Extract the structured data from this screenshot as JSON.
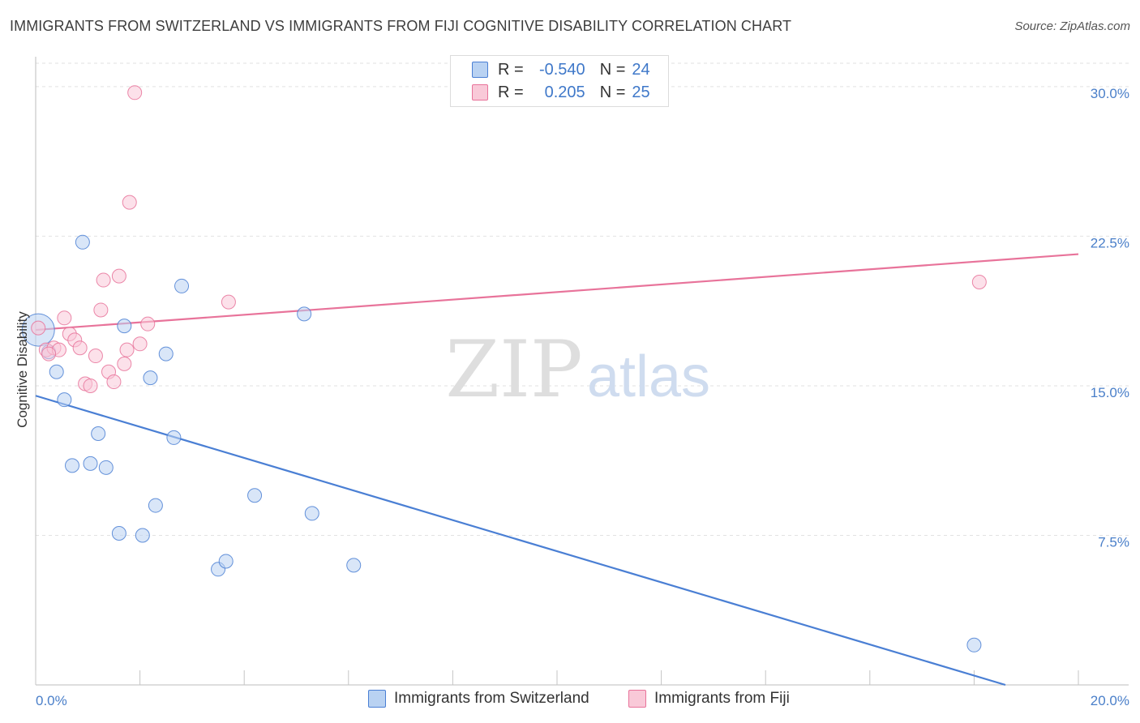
{
  "title": "IMMIGRANTS FROM SWITZERLAND VS IMMIGRANTS FROM FIJI COGNITIVE DISABILITY CORRELATION CHART",
  "source": "Source: ZipAtlas.com",
  "watermark": {
    "zip": "ZIP",
    "atlas": "atlas"
  },
  "legend": {
    "rows": [
      {
        "r_label": "R =",
        "r_value": "-0.540",
        "n_label": "N =",
        "n_value": "24"
      },
      {
        "r_label": "R =",
        "r_value": "0.205",
        "n_label": "N =",
        "n_value": "25"
      }
    ]
  },
  "chart_data": {
    "type": "scatter",
    "title": "IMMIGRANTS FROM SWITZERLAND VS IMMIGRANTS FROM FIJI COGNITIVE DISABILITY CORRELATION CHART",
    "xlabel": "",
    "ylabel": "Cognitive Disability",
    "xlim": [
      0,
      20
    ],
    "ylim": [
      0,
      31.5
    ],
    "x_tick_labels": [
      "0.0%",
      "20.0%"
    ],
    "y_ticks": [
      7.5,
      15.0,
      22.5,
      30.0
    ],
    "y_tick_labels": [
      "7.5%",
      "15.0%",
      "22.5%",
      "30.0%"
    ],
    "grid": true,
    "legend_position": "top-center",
    "series": [
      {
        "name": "Immigrants from Switzerland",
        "color": "#4a7fd4",
        "fill": "#b9d2f2",
        "r": -0.54,
        "n": 24,
        "trend": {
          "x": [
            0,
            18.6
          ],
          "y": [
            14.5,
            0
          ]
        },
        "points": [
          {
            "x": 0.05,
            "y": 17.8,
            "big": true
          },
          {
            "x": 0.25,
            "y": 16.7
          },
          {
            "x": 0.4,
            "y": 15.7
          },
          {
            "x": 0.55,
            "y": 14.3
          },
          {
            "x": 0.7,
            "y": 11.0
          },
          {
            "x": 0.9,
            "y": 22.2
          },
          {
            "x": 1.05,
            "y": 11.1
          },
          {
            "x": 1.2,
            "y": 12.6
          },
          {
            "x": 1.35,
            "y": 10.9
          },
          {
            "x": 1.6,
            "y": 7.6
          },
          {
            "x": 1.7,
            "y": 18.0
          },
          {
            "x": 2.05,
            "y": 7.5
          },
          {
            "x": 2.2,
            "y": 15.4
          },
          {
            "x": 2.3,
            "y": 9.0
          },
          {
            "x": 2.5,
            "y": 16.6
          },
          {
            "x": 2.65,
            "y": 12.4
          },
          {
            "x": 2.8,
            "y": 20.0
          },
          {
            "x": 3.5,
            "y": 5.8
          },
          {
            "x": 3.65,
            "y": 6.2
          },
          {
            "x": 4.2,
            "y": 9.5
          },
          {
            "x": 5.15,
            "y": 18.6
          },
          {
            "x": 5.3,
            "y": 8.6
          },
          {
            "x": 6.1,
            "y": 6.0
          },
          {
            "x": 18.0,
            "y": 2.0
          }
        ]
      },
      {
        "name": "Immigrants from Fiji",
        "color": "#e8739a",
        "fill": "#f9c9d8",
        "r": 0.205,
        "n": 25,
        "trend": {
          "x": [
            0,
            20
          ],
          "y": [
            17.8,
            21.6
          ]
        },
        "points": [
          {
            "x": 0.05,
            "y": 17.9
          },
          {
            "x": 0.2,
            "y": 16.8
          },
          {
            "x": 0.35,
            "y": 16.9
          },
          {
            "x": 0.45,
            "y": 16.8
          },
          {
            "x": 0.55,
            "y": 18.4
          },
          {
            "x": 0.65,
            "y": 17.6
          },
          {
            "x": 0.75,
            "y": 17.3
          },
          {
            "x": 0.85,
            "y": 16.9
          },
          {
            "x": 0.95,
            "y": 15.1
          },
          {
            "x": 1.05,
            "y": 15.0
          },
          {
            "x": 1.15,
            "y": 16.5
          },
          {
            "x": 1.25,
            "y": 18.8
          },
          {
            "x": 1.3,
            "y": 20.3
          },
          {
            "x": 1.4,
            "y": 15.7
          },
          {
            "x": 1.5,
            "y": 15.2
          },
          {
            "x": 1.6,
            "y": 20.5
          },
          {
            "x": 1.7,
            "y": 16.1
          },
          {
            "x": 1.75,
            "y": 16.8
          },
          {
            "x": 1.8,
            "y": 24.2
          },
          {
            "x": 1.9,
            "y": 29.7
          },
          {
            "x": 2.0,
            "y": 17.1
          },
          {
            "x": 2.15,
            "y": 18.1
          },
          {
            "x": 3.7,
            "y": 19.2
          },
          {
            "x": 18.1,
            "y": 20.2
          },
          {
            "x": 0.25,
            "y": 16.6
          }
        ]
      }
    ]
  }
}
